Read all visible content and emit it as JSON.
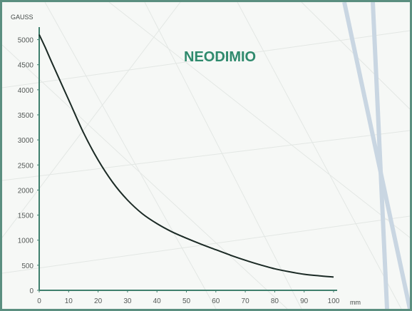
{
  "chart_data": {
    "type": "line",
    "title": "NEODIMIO",
    "ylabel": "GAUSS",
    "xlabel": "mm",
    "xlim": [
      0,
      100
    ],
    "ylim": [
      0,
      5250
    ],
    "x_ticks": [
      0,
      10,
      20,
      30,
      40,
      50,
      60,
      70,
      80,
      90,
      100
    ],
    "y_ticks": [
      0,
      500,
      1000,
      1500,
      2000,
      2500,
      3000,
      3500,
      4000,
      4500,
      5000
    ],
    "grid": false,
    "legend": "none",
    "series": [
      {
        "x": [
          0,
          2,
          5,
          10,
          15,
          20,
          25,
          30,
          35,
          40,
          45,
          50,
          55,
          60,
          65,
          70,
          75,
          80,
          85,
          90,
          95,
          100
        ],
        "values": [
          5100,
          4850,
          4450,
          3800,
          3150,
          2600,
          2150,
          1800,
          1530,
          1330,
          1170,
          1040,
          920,
          810,
          700,
          600,
          510,
          430,
          370,
          320,
          290,
          265
        ]
      }
    ],
    "colors": {
      "line": "#1b2a25",
      "axes": "#3f7f6d",
      "title": "#2f8a6d",
      "frame": "#5b8f80",
      "background": "#f6f8f6"
    }
  }
}
